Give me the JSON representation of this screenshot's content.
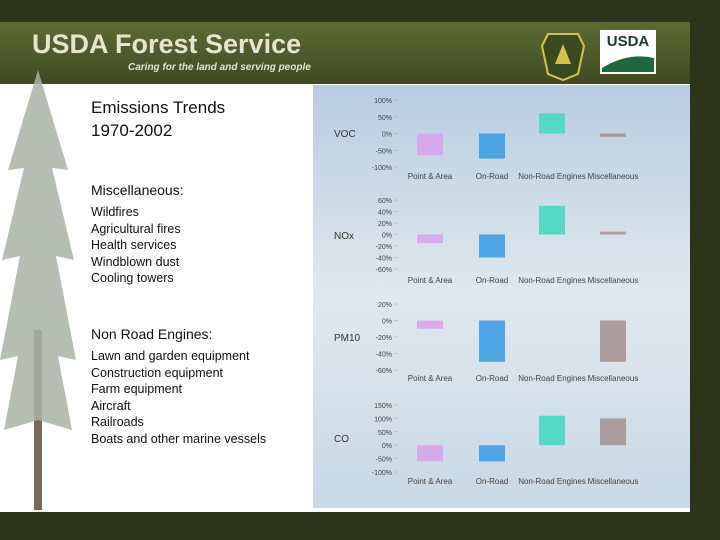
{
  "header": {
    "title": "USDA Forest Service",
    "tagline": "Caring for the land and serving people",
    "logo": "USDA"
  },
  "left": {
    "title_lines": [
      "Emissions Trends",
      "1970-2002"
    ],
    "sections": [
      {
        "heading": "Miscellaneous:",
        "items": [
          "Wildfires",
          "Agricultural fires",
          "Health services",
          "Windblown dust",
          "Cooling towers"
        ]
      },
      {
        "heading": "Non Road Engines:",
        "items": [
          "Lawn and garden equipment",
          "Construction equipment",
          "Farm equipment",
          "Aircraft",
          "Railroads",
          "Boats and other marine vessels"
        ]
      }
    ]
  },
  "chart_data": [
    {
      "type": "bar",
      "y_label": "VOC",
      "categories": [
        "Point & Area",
        "On-Road",
        "Non-Road Engines",
        "Miscellaneous"
      ],
      "values": [
        -65,
        -75,
        60,
        -10
      ],
      "colors": [
        "#d9a3ea",
        "#3d9fe6",
        "#46d9c0",
        "#a99595"
      ],
      "ylim": [
        -100,
        100
      ],
      "yticks": [
        {
          "value": 100,
          "label": "100%"
        },
        {
          "value": 50,
          "label": "50%"
        },
        {
          "value": 0,
          "label": "0%"
        },
        {
          "value": -50,
          "label": "-50%"
        },
        {
          "value": -100,
          "label": "-100%"
        }
      ]
    },
    {
      "type": "bar",
      "y_label": "NOx",
      "categories": [
        "Point & Area",
        "On-Road",
        "Non-Road Engines",
        "Miscellaneous"
      ],
      "values": [
        -15,
        -40,
        50,
        5
      ],
      "colors": [
        "#d9a3ea",
        "#3d9fe6",
        "#46d9c0",
        "#a99595"
      ],
      "ylim": [
        -60,
        60
      ],
      "yticks": [
        {
          "value": 60,
          "label": "60%"
        },
        {
          "value": 40,
          "label": "40%"
        },
        {
          "value": 20,
          "label": "20%"
        },
        {
          "value": 0,
          "label": "0%"
        },
        {
          "value": -20,
          "label": "-20%"
        },
        {
          "value": -40,
          "label": "-40%"
        },
        {
          "value": -60,
          "label": "-60%"
        }
      ]
    },
    {
      "type": "bar",
      "y_label": "PM10",
      "categories": [
        "Point & Area",
        "On-Road",
        "Non-Road Engines",
        "Miscellaneous"
      ],
      "values": [
        -10,
        -50,
        0,
        -50
      ],
      "colors": [
        "#d9a3ea",
        "#3d9fe6",
        "#46d9c0",
        "#a99595"
      ],
      "ylim": [
        -60,
        20
      ],
      "yticks": [
        {
          "value": 20,
          "label": "20%"
        },
        {
          "value": 0,
          "label": "0%"
        },
        {
          "value": -20,
          "label": "-20%"
        },
        {
          "value": -40,
          "label": "-40%"
        },
        {
          "value": -60,
          "label": "-60%"
        }
      ]
    },
    {
      "type": "bar",
      "y_label": "CO",
      "categories": [
        "Point & Area",
        "On-Road",
        "Non-Road Engines",
        "Miscellaneous"
      ],
      "values": [
        -60,
        -60,
        110,
        100
      ],
      "colors": [
        "#d9a3ea",
        "#3d9fe6",
        "#46d9c0",
        "#a99595"
      ],
      "ylim": [
        -100,
        150
      ],
      "yticks": [
        {
          "value": 150,
          "label": "150%"
        },
        {
          "value": 100,
          "label": "100%"
        },
        {
          "value": 50,
          "label": "50%"
        },
        {
          "value": 0,
          "label": "0%"
        },
        {
          "value": -50,
          "label": "-50%"
        },
        {
          "value": -100,
          "label": "-100%"
        }
      ]
    }
  ]
}
